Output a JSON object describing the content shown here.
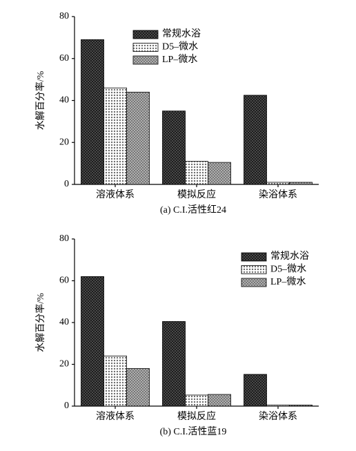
{
  "chart_data": [
    {
      "type": "bar",
      "caption": "(a) C.I.活性红24",
      "ylabel": "水解百分率/%",
      "categories": [
        "溶液体系",
        "模拟反应",
        "染浴体系"
      ],
      "series": [
        {
          "name": "常规水浴",
          "color": "#555555",
          "values": [
            69,
            35,
            42.5
          ]
        },
        {
          "name": "D5–微水",
          "color": "#ffffff",
          "values": [
            46,
            11,
            1
          ]
        },
        {
          "name": "LP–微水",
          "color": "#b0b0b0",
          "values": [
            44,
            10.5,
            1
          ]
        }
      ],
      "ylim": [
        0,
        80
      ],
      "yticks": [
        0,
        20,
        40,
        60,
        80
      ],
      "legend": "top-center"
    },
    {
      "type": "bar",
      "caption": "(b) C.I.活性蓝19",
      "ylabel": "水解百分率/%",
      "categories": [
        "溶液体系",
        "模拟反应",
        "染浴体系"
      ],
      "series": [
        {
          "name": "常规水浴",
          "color": "#555555",
          "values": [
            62,
            40.5,
            15.2
          ]
        },
        {
          "name": "D5–微水",
          "color": "#ffffff",
          "values": [
            24,
            5.3,
            0.5
          ]
        },
        {
          "name": "LP–微水",
          "color": "#b0b0b0",
          "values": [
            18,
            5.6,
            0.5
          ]
        }
      ],
      "ylim": [
        0,
        80
      ],
      "yticks": [
        0,
        20,
        40,
        60,
        80
      ],
      "legend": "top-right"
    }
  ]
}
